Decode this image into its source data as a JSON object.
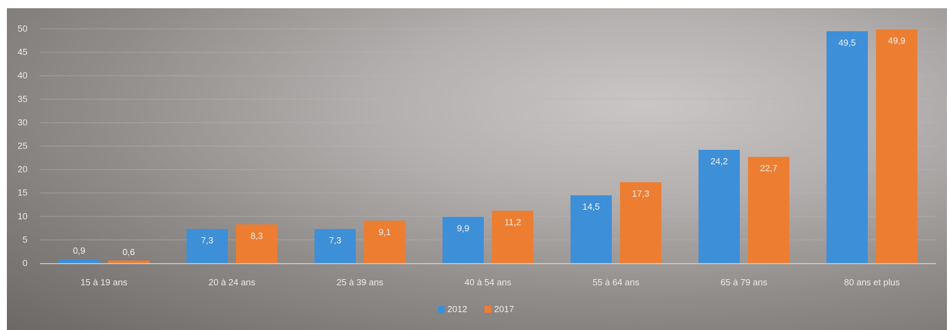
{
  "colors": {
    "series_2012": "#3d8fd7",
    "series_2017": "#ed7d31",
    "axis": "#d8d8d8",
    "grid": "#b9b6b4"
  },
  "chart_data": {
    "type": "bar",
    "categories": [
      "15 à 19 ans",
      "20 à 24 ans",
      "25 à 39 ans",
      "40 à 54 ans",
      "55 à 64 ans",
      "65 à 79 ans",
      "80 ans et plus"
    ],
    "series": [
      {
        "name": "2012",
        "values": [
          0.9,
          7.3,
          7.3,
          9.9,
          14.5,
          24.2,
          49.5
        ],
        "labels": [
          "0,9",
          "7,3",
          "7,3",
          "9,9",
          "14,5",
          "24,2",
          "49,5"
        ]
      },
      {
        "name": "2017",
        "values": [
          0.6,
          8.3,
          9.1,
          11.2,
          17.3,
          22.7,
          49.9
        ],
        "labels": [
          "0,6",
          "8,3",
          "9,1",
          "11,2",
          "17,3",
          "22,7",
          "49,9"
        ]
      }
    ],
    "yticks": [
      "0",
      "5",
      "10",
      "15",
      "20",
      "25",
      "30",
      "35",
      "40",
      "45",
      "50"
    ],
    "ylim": [
      0,
      50
    ],
    "grid": true,
    "legend_position": "bottom"
  }
}
